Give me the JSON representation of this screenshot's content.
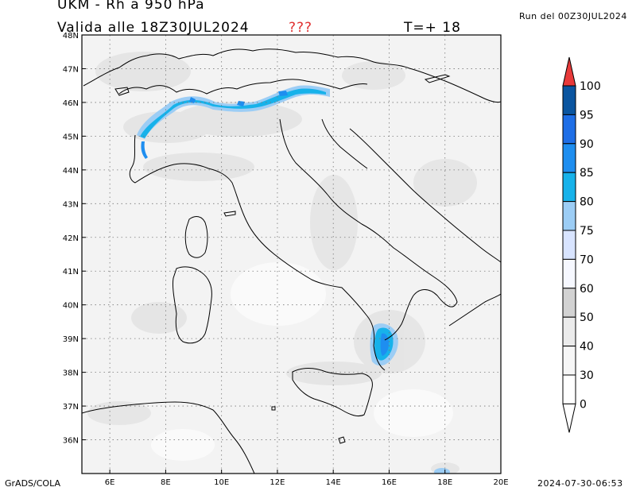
{
  "header": {
    "title": "UKM - Rh a 950 hPa",
    "valid": "Valida alle 18Z30JUL2024",
    "status_flag": "???",
    "forecast_step": "T=+ 18",
    "run": "Run del 00Z30JUL2024"
  },
  "footer": {
    "credit": "GrADS/COLA",
    "timestamp": "2024-07-30-06:53"
  },
  "map": {
    "variable": "Rh",
    "level_hpa": 950,
    "lon_range": [
      5,
      20
    ],
    "lat_range": [
      35,
      48
    ],
    "lon_ticks": [
      "6E",
      "8E",
      "10E",
      "12E",
      "14E",
      "16E",
      "18E",
      "20E"
    ],
    "lat_ticks": [
      "48N",
      "47N",
      "46N",
      "45N",
      "44N",
      "43N",
      "42N",
      "41N",
      "40N",
      "39N",
      "38N",
      "37N",
      "36N"
    ],
    "grid": true
  },
  "legend": {
    "levels": [
      "100",
      "95",
      "90",
      "85",
      "80",
      "75",
      "70",
      "60",
      "50",
      "40",
      "30",
      "0"
    ],
    "colors": [
      "#e83a3a",
      "#0a55a0",
      "#1e6ee6",
      "#1e8ef0",
      "#17b2ea",
      "#9ccdf5",
      "#d8e4ff",
      "#f6f8ff",
      "#d2d2d2",
      "#ebebeb",
      "#f6f6f6",
      "#ffffff"
    ]
  }
}
